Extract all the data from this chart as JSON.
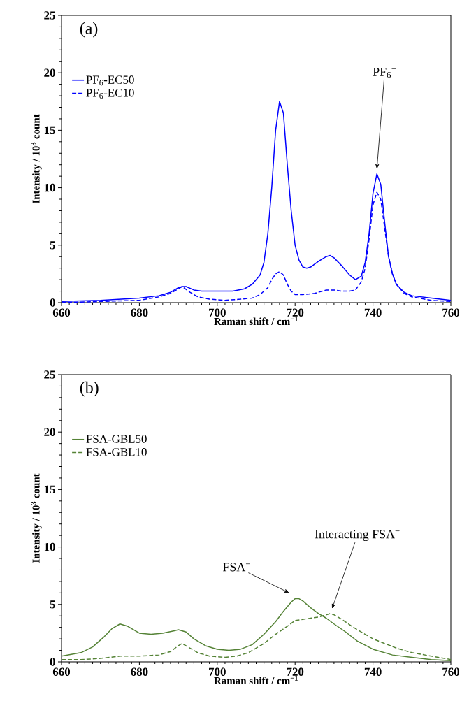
{
  "chart_data": [
    {
      "type": "line",
      "title": "(a)",
      "xlabel": "Raman shift / cm$^{−1}$",
      "ylabel": "Intensity / 10$^{3}$ count",
      "xlim": [
        660,
        760
      ],
      "ylim": [
        0,
        25
      ],
      "xticks": [
        660,
        680,
        700,
        720,
        740,
        760
      ],
      "yticks": [
        0,
        5,
        10,
        15,
        20,
        25
      ],
      "grid": false,
      "legend": "top left",
      "marker": "none",
      "annotations": [
        "PF$_{6}$$^{−}$"
      ],
      "series": [
        {
          "name": "PF$_{6}$-EC50",
          "color": "#0000ff",
          "line_style": "solid",
          "x": [
            660,
            670,
            680,
            685,
            688,
            690,
            691,
            692,
            694,
            696,
            700,
            704,
            707,
            709,
            711,
            712,
            713,
            714,
            715,
            716,
            717,
            718,
            719,
            720,
            721,
            722,
            723,
            724,
            726,
            728,
            729,
            730,
            732,
            734,
            735.5,
            737,
            738,
            739,
            740,
            741,
            742,
            743,
            744,
            745,
            746,
            748,
            750,
            755,
            760
          ],
          "values": [
            0.1,
            0.2,
            0.4,
            0.6,
            0.9,
            1.3,
            1.4,
            1.4,
            1.1,
            1.0,
            1.0,
            1.0,
            1.2,
            1.6,
            2.4,
            3.5,
            6,
            10,
            15,
            17.5,
            16.5,
            12,
            8,
            5,
            3.7,
            3.1,
            3.0,
            3.1,
            3.6,
            4.0,
            4.1,
            3.9,
            3.2,
            2.4,
            2.0,
            2.3,
            3.5,
            6,
            9.5,
            11.2,
            10.3,
            7,
            4,
            2.5,
            1.6,
            0.9,
            0.6,
            0.4,
            0.2
          ]
        },
        {
          "name": "PF$_{6}$-EC10",
          "color": "#0000ff",
          "line_style": "dashed",
          "x": [
            660,
            670,
            680,
            685,
            688,
            691,
            693,
            695,
            698,
            702,
            706,
            709,
            711,
            713,
            714,
            715,
            716,
            717,
            718,
            719,
            720,
            722,
            725,
            728,
            730,
            732,
            734,
            735.5,
            737,
            738,
            739,
            740,
            741,
            742,
            743,
            744,
            745,
            746,
            748,
            750,
            755,
            760
          ],
          "values": [
            0,
            0.1,
            0.2,
            0.5,
            0.8,
            1.4,
            0.9,
            0.5,
            0.3,
            0.2,
            0.3,
            0.4,
            0.7,
            1.3,
            2.0,
            2.5,
            2.7,
            2.4,
            1.6,
            1.0,
            0.7,
            0.7,
            0.8,
            1.1,
            1.1,
            1.0,
            1.0,
            1.1,
            1.8,
            3,
            5.5,
            8.5,
            9.6,
            9,
            6.5,
            4,
            2.5,
            1.6,
            0.8,
            0.5,
            0.2,
            0.1
          ]
        }
      ]
    },
    {
      "type": "line",
      "title": "(b)",
      "xlabel": "Raman shift / cm$^{−1}$",
      "ylabel": "Intensity / 10$^{3}$ count",
      "xlim": [
        660,
        760
      ],
      "ylim": [
        0,
        25
      ],
      "xticks": [
        660,
        680,
        700,
        720,
        740,
        760
      ],
      "yticks": [
        0,
        5,
        10,
        15,
        20,
        25
      ],
      "grid": false,
      "legend": "top left",
      "marker": "none",
      "annotations": [
        "FSA$^{−}$",
        "Interacting FSA$^{−}$"
      ],
      "series": [
        {
          "name": "FSA-GBL50",
          "color": "#548235",
          "line_style": "solid",
          "x": [
            660,
            665,
            668,
            671,
            673,
            675,
            677,
            680,
            683,
            686,
            689,
            690,
            692,
            694,
            697,
            700,
            703,
            706,
            709,
            712,
            715,
            717,
            719,
            720,
            721,
            722,
            724,
            726,
            728,
            730,
            733,
            736,
            740,
            745,
            750,
            755,
            760
          ],
          "values": [
            0.5,
            0.8,
            1.3,
            2.2,
            2.9,
            3.3,
            3.1,
            2.5,
            2.4,
            2.5,
            2.7,
            2.8,
            2.6,
            2.0,
            1.4,
            1.1,
            1.0,
            1.1,
            1.5,
            2.4,
            3.5,
            4.4,
            5.2,
            5.5,
            5.5,
            5.3,
            4.7,
            4.2,
            3.8,
            3.3,
            2.6,
            1.8,
            1.1,
            0.6,
            0.4,
            0.2,
            0.1
          ]
        },
        {
          "name": "FSA-GBL10",
          "color": "#548235",
          "line_style": "dashed",
          "x": [
            660,
            665,
            670,
            675,
            680,
            685,
            688,
            690,
            691,
            693,
            695,
            698,
            702,
            705,
            708,
            712,
            715,
            718,
            720,
            722,
            724,
            726,
            728,
            729,
            730,
            732,
            735,
            738,
            740,
            743,
            746,
            750,
            755,
            760
          ],
          "values": [
            0.2,
            0.2,
            0.3,
            0.5,
            0.5,
            0.6,
            0.9,
            1.4,
            1.6,
            1.2,
            0.8,
            0.5,
            0.4,
            0.5,
            0.8,
            1.6,
            2.4,
            3.1,
            3.6,
            3.7,
            3.8,
            3.9,
            4.1,
            4.2,
            4.1,
            3.7,
            3.0,
            2.4,
            2.0,
            1.6,
            1.2,
            0.8,
            0.5,
            0.2
          ]
        }
      ]
    }
  ]
}
